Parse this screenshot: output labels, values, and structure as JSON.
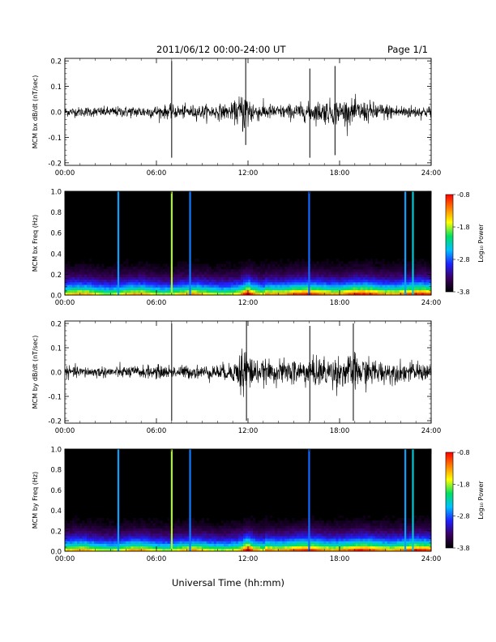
{
  "header": {
    "date_range": "2011/06/12  00:00-24:00 UT",
    "page": "Page 1/1"
  },
  "x_axis_title": "Universal Time (hh:mm)",
  "colorbar": {
    "ticks": [
      "-0.8",
      "-1.8",
      "-2.8",
      "-3.8"
    ],
    "tick_values": [
      -0.8,
      -1.8,
      -2.8,
      -3.8
    ],
    "range": [
      -3.8,
      -0.8
    ],
    "label": "Log₁₀ Power",
    "colors": [
      "#000000",
      "#3a0060",
      "#2020ff",
      "#00c0ff",
      "#00e060",
      "#ffff00",
      "#ff8000",
      "#ff0000"
    ]
  },
  "chart_data": [
    {
      "type": "line",
      "ylabel": "MCM bx dB/dt (nT/sec)",
      "xlim": [
        "00:00",
        "24:00"
      ],
      "x_ticks": [
        "00:00",
        "06:00",
        "12:00",
        "18:00",
        "24:00"
      ],
      "ylim": [
        -0.21,
        0.21
      ],
      "y_ticks": [
        "0.2",
        "0.1",
        "0.0",
        "-0.1",
        "-0.2"
      ],
      "y_tick_values": [
        0.2,
        0.1,
        0.0,
        -0.1,
        -0.2
      ],
      "noise_envelope": {
        "hours": [
          0,
          3,
          6,
          9,
          11,
          11.8,
          12.5,
          14,
          15,
          16,
          17,
          18,
          19,
          20,
          21,
          22,
          24
        ],
        "amplitude": [
          0.02,
          0.022,
          0.028,
          0.03,
          0.035,
          0.1,
          0.04,
          0.03,
          0.035,
          0.04,
          0.05,
          0.055,
          0.05,
          0.045,
          0.035,
          0.03,
          0.025
        ]
      },
      "spikes": [
        {
          "hour": 7.0,
          "min": -0.18,
          "max": 0.2
        },
        {
          "hour": 11.85,
          "min": -0.13,
          "max": 0.21
        },
        {
          "hour": 16.05,
          "min": -0.18,
          "max": 0.17
        },
        {
          "hour": 17.7,
          "min": -0.17,
          "max": 0.18
        }
      ]
    },
    {
      "type": "heatmap",
      "ylabel": "MCM bx Freq (Hz)",
      "xlim": [
        "00:00",
        "24:00"
      ],
      "x_ticks": [
        "00:00",
        "06:00",
        "12:00",
        "18:00",
        "24:00"
      ],
      "ylim": [
        0.0,
        1.0
      ],
      "y_ticks": [
        "1.0",
        "0.8",
        "0.6",
        "0.4",
        "0.2",
        "0.0"
      ],
      "y_tick_values": [
        1.0,
        0.8,
        0.6,
        0.4,
        0.2,
        0.0
      ],
      "colorbar_range": [
        -3.8,
        -0.8
      ],
      "vertical_lines": [
        {
          "hour": 3.5,
          "log_power": -2.6
        },
        {
          "hour": 7.0,
          "log_power": -1.8
        },
        {
          "hour": 8.2,
          "log_power": -2.7
        },
        {
          "hour": 16.0,
          "log_power": -2.75
        },
        {
          "hour": 22.3,
          "log_power": -2.6
        },
        {
          "hour": 22.8,
          "log_power": -2.4
        }
      ]
    },
    {
      "type": "line",
      "ylabel": "MCM by dB/dt (nT/sec)",
      "xlim": [
        "00:00",
        "24:00"
      ],
      "x_ticks": [
        "00:00",
        "06:00",
        "12:00",
        "18:00",
        "24:00"
      ],
      "ylim": [
        -0.21,
        0.21
      ],
      "y_ticks": [
        "0.2",
        "0.1",
        "0.0",
        "-0.1",
        "-0.2"
      ],
      "y_tick_values": [
        0.2,
        0.1,
        0.0,
        -0.1,
        -0.2
      ],
      "noise_envelope": {
        "hours": [
          0,
          3,
          6,
          9,
          11,
          11.8,
          12.5,
          14,
          15,
          16,
          17,
          18,
          19,
          20,
          21,
          22,
          24
        ],
        "amplitude": [
          0.025,
          0.025,
          0.03,
          0.03,
          0.04,
          0.14,
          0.05,
          0.05,
          0.06,
          0.06,
          0.07,
          0.07,
          0.08,
          0.06,
          0.05,
          0.045,
          0.04
        ]
      },
      "spikes": [
        {
          "hour": 7.0,
          "min": -0.2,
          "max": 0.2
        },
        {
          "hour": 11.9,
          "min": -0.2,
          "max": 0.21
        },
        {
          "hour": 16.05,
          "min": -0.2,
          "max": 0.19
        },
        {
          "hour": 18.9,
          "min": -0.2,
          "max": 0.2
        }
      ]
    },
    {
      "type": "heatmap",
      "ylabel": "MCM by Freq (Hz)",
      "xlim": [
        "00:00",
        "24:00"
      ],
      "x_ticks": [
        "00:00",
        "06:00",
        "12:00",
        "18:00",
        "24:00"
      ],
      "ylim": [
        0.0,
        1.0
      ],
      "y_ticks": [
        "1.0",
        "0.8",
        "0.6",
        "0.4",
        "0.2",
        "0.0"
      ],
      "y_tick_values": [
        1.0,
        0.8,
        0.6,
        0.4,
        0.2,
        0.0
      ],
      "colorbar_range": [
        -3.8,
        -0.8
      ],
      "vertical_lines": [
        {
          "hour": 3.5,
          "log_power": -2.6
        },
        {
          "hour": 7.0,
          "log_power": -1.8
        },
        {
          "hour": 8.2,
          "log_power": -2.7
        },
        {
          "hour": 16.0,
          "log_power": -2.75
        },
        {
          "hour": 22.3,
          "log_power": -2.6
        },
        {
          "hour": 22.8,
          "log_power": -2.4
        }
      ]
    }
  ]
}
